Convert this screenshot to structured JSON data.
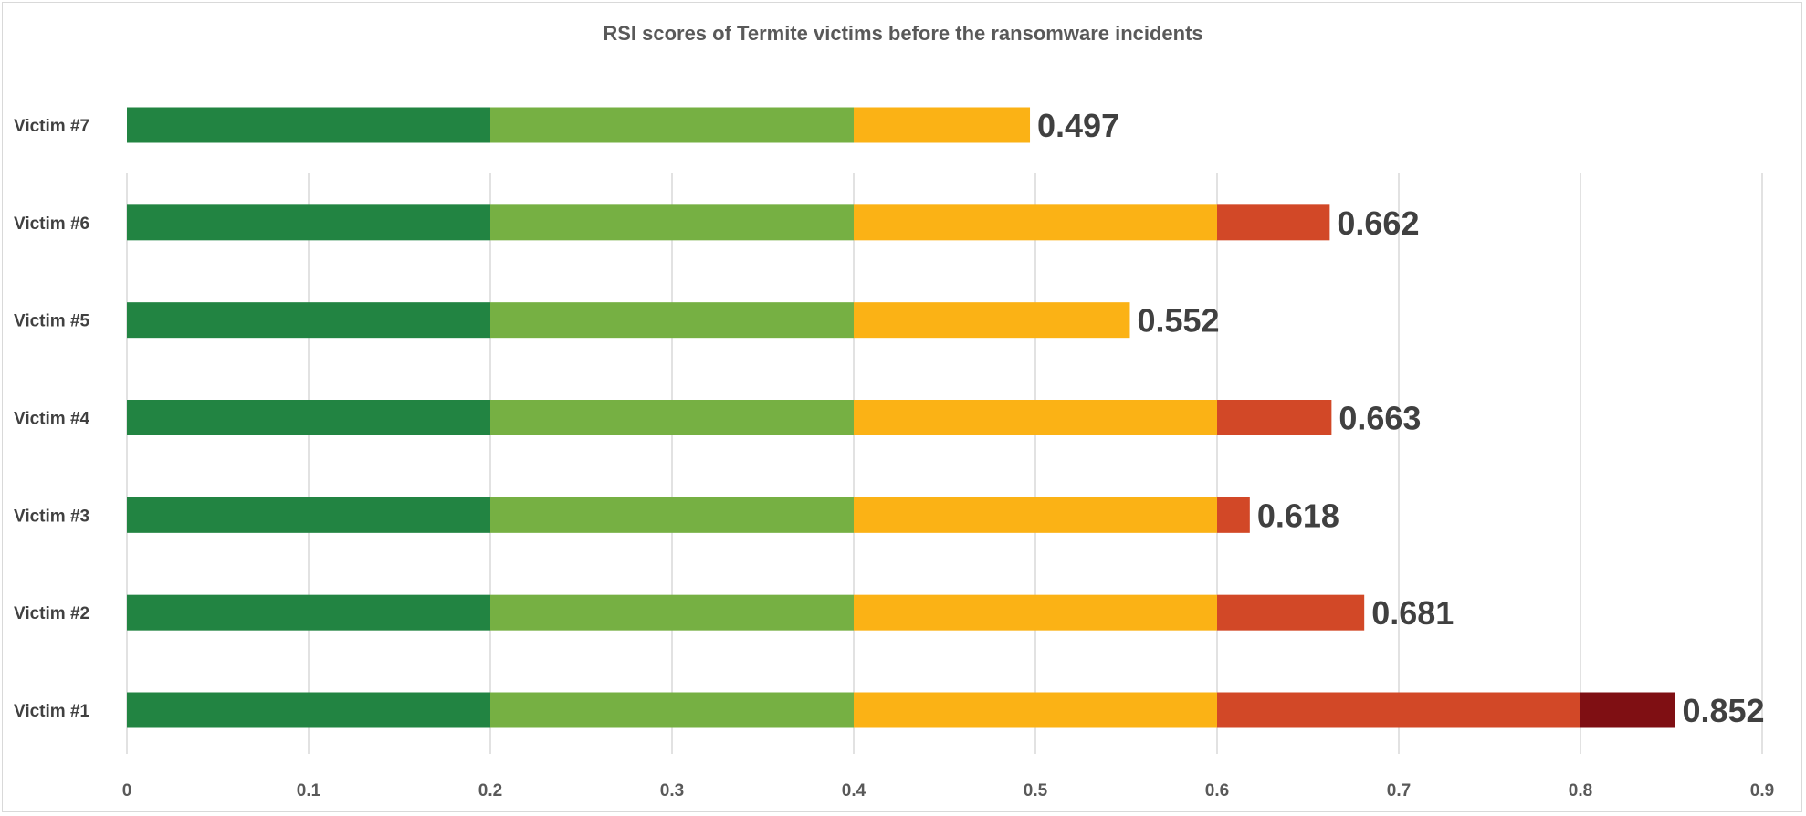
{
  "chart_data": {
    "type": "bar",
    "orientation": "horizontal",
    "stacked": true,
    "title": "RSI scores of Termite victims before the ransomware incidents",
    "categories": [
      "Victim #7",
      "Victim #6",
      "Victim #5",
      "Victim #4",
      "Victim #3",
      "Victim #2",
      "Victim #1"
    ],
    "totals": [
      0.497,
      0.662,
      0.552,
      0.663,
      0.618,
      0.681,
      0.852
    ],
    "data_labels": [
      "0.497",
      "0.662",
      "0.552",
      "0.663",
      "0.618",
      "0.681",
      "0.852"
    ],
    "band_edges": [
      0,
      0.2,
      0.4,
      0.6,
      0.8,
      1.0
    ],
    "band_colors": [
      "#228442",
      "#76B043",
      "#FBB215",
      "#D24827",
      "#7F0F13"
    ],
    "xlim": [
      0,
      0.9
    ],
    "xticks": [
      "0",
      "0.1",
      "0.2",
      "0.3",
      "0.4",
      "0.5",
      "0.6",
      "0.7",
      "0.8",
      "0.9"
    ],
    "grid": true,
    "legend": "none",
    "xlabel": "",
    "ylabel": ""
  }
}
